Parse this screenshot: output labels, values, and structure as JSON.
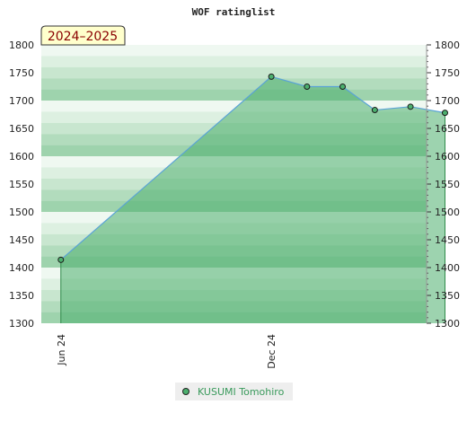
{
  "chart_data": {
    "type": "area",
    "title": "WOF ratinglist",
    "season_label": "2024–2025",
    "ylim": [
      1300,
      1800
    ],
    "yticks": [
      1300,
      1350,
      1400,
      1450,
      1500,
      1550,
      1600,
      1650,
      1700,
      1750,
      1800
    ],
    "xlim": [
      "2024-05-15",
      "2025-04-15"
    ],
    "x_ticks": [
      {
        "date": "2024-06-01",
        "label": "Jun 24"
      },
      {
        "date": "2024-12-01",
        "label": "Dec 24"
      }
    ],
    "series": [
      {
        "name": "KUSUMI Tomohiro",
        "points": [
          {
            "x": "2024-06-01",
            "y": 1414
          },
          {
            "x": "2024-12-01",
            "y": 1743
          },
          {
            "x": "2025-01-01",
            "y": 1725
          },
          {
            "x": "2025-02-01",
            "y": 1725
          },
          {
            "x": "2025-03-01",
            "y": 1683
          },
          {
            "x": "2025-04-01",
            "y": 1689
          },
          {
            "x": "2025-05-01",
            "y": 1678
          }
        ]
      }
    ],
    "colors": {
      "fill": "#4caf6e",
      "line": "#5aa3d6",
      "marker": "#4caf6e"
    },
    "grid": false,
    "legend_position": "bottom"
  },
  "legend": {
    "label": "KUSUMI Tomohiro"
  }
}
